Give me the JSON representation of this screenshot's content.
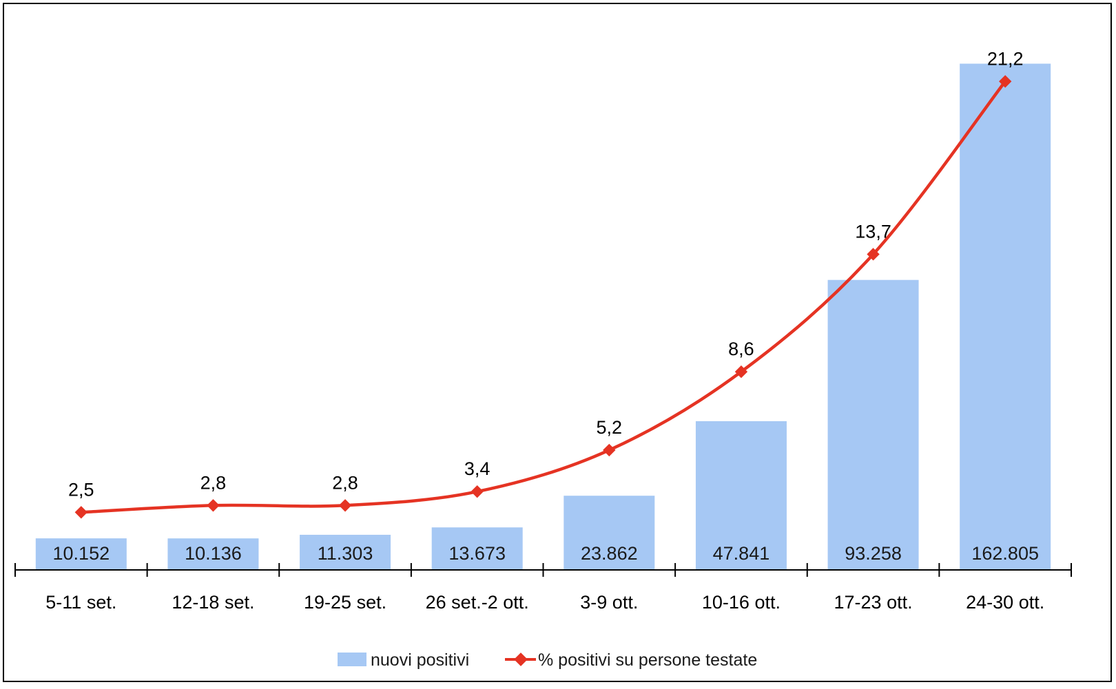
{
  "chart_data": {
    "type": "bar",
    "title": "",
    "xlabel": "",
    "ylabel": "",
    "categories": [
      "5-11 set.",
      "12-18 set.",
      "19-25 set.",
      "26 set.-2 ott.",
      "3-9 ott.",
      "10-16 ott.",
      "17-23 ott.",
      "24-30 ott."
    ],
    "series": [
      {
        "name": "nuovi positivi",
        "type": "bar",
        "values": [
          10152,
          10136,
          11303,
          13673,
          23862,
          47841,
          93258,
          162805
        ],
        "labels": [
          "10.152",
          "10.136",
          "11.303",
          "13.673",
          "23.862",
          "47.841",
          "93.258",
          "162.805"
        ],
        "color": "#a6c8f4"
      },
      {
        "name": "% positivi su persone testate",
        "type": "line",
        "values": [
          2.5,
          2.8,
          2.8,
          3.4,
          5.2,
          8.6,
          13.7,
          21.2
        ],
        "labels": [
          "2,5",
          "2,8",
          "2,8",
          "3,4",
          "5,2",
          "8,6",
          "13,7",
          "21,2"
        ],
        "color": "#e53323"
      }
    ],
    "bar_axis_range": [
      0,
      170000
    ],
    "line_axis_range": [
      0,
      23
    ],
    "grid": false,
    "legend_position": "bottom-center"
  }
}
